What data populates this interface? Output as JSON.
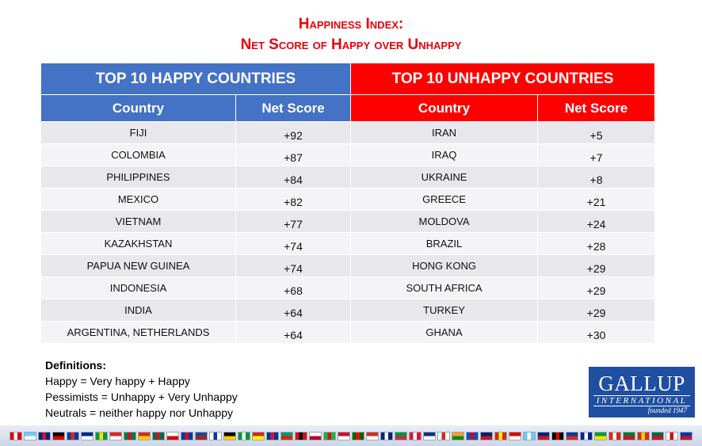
{
  "title": {
    "line1": "Happiness Index:",
    "line2": "Net Score of Happy over Unhappy"
  },
  "happy": {
    "header": "TOP 10 HAPPY COUNTRIES",
    "col_country": "Country",
    "col_score": "Net Score",
    "rows": [
      {
        "country": "FIJI",
        "score": "+92"
      },
      {
        "country": "COLOMBIA",
        "score": "+87"
      },
      {
        "country": "PHILIPPINES",
        "score": "+84"
      },
      {
        "country": "MEXICO",
        "score": "+82"
      },
      {
        "country": "VIETNAM",
        "score": "+77"
      },
      {
        "country": "KAZAKHSTAN",
        "score": "+74"
      },
      {
        "country": "PAPUA NEW GUINEA",
        "score": "+74"
      },
      {
        "country": "INDONESIA",
        "score": "+68"
      },
      {
        "country": "INDIA",
        "score": "+64"
      },
      {
        "country": "ARGENTINA, NETHERLANDS",
        "score": "+64"
      }
    ]
  },
  "unhappy": {
    "header": "TOP 10 UNHAPPY COUNTRIES",
    "col_country": "Country",
    "col_score": "Net Score",
    "rows": [
      {
        "country": "IRAN",
        "score": "+5"
      },
      {
        "country": "IRAQ",
        "score": "+7"
      },
      {
        "country": "UKRAINE",
        "score": "+8"
      },
      {
        "country": "GREECE",
        "score": "+21"
      },
      {
        "country": "MOLDOVA",
        "score": "+24"
      },
      {
        "country": "BRAZIL",
        "score": "+28"
      },
      {
        "country": "HONG KONG",
        "score": "+29"
      },
      {
        "country": "SOUTH AFRICA",
        "score": "+29"
      },
      {
        "country": "TURKEY",
        "score": "+29"
      },
      {
        "country": "GHANA",
        "score": "+30"
      }
    ]
  },
  "definitions": {
    "title": "Definitions:",
    "lines": [
      "Happy = Very happy + Happy",
      "Pessimists = Unhappy + Very Unhappy",
      "Neutrals = neither happy nor Unhappy"
    ]
  },
  "logo": {
    "main": "GALLUP",
    "sub": "INTERNATIONAL",
    "founded": "founded 1947"
  },
  "colors": {
    "title_red": "#e8000b",
    "happy_blue": "#4472c4",
    "unhappy_red": "#ff0000",
    "logo_blue": "#1f4fa1"
  },
  "flag_strip_icons": [
    "flag-icon"
  ]
}
